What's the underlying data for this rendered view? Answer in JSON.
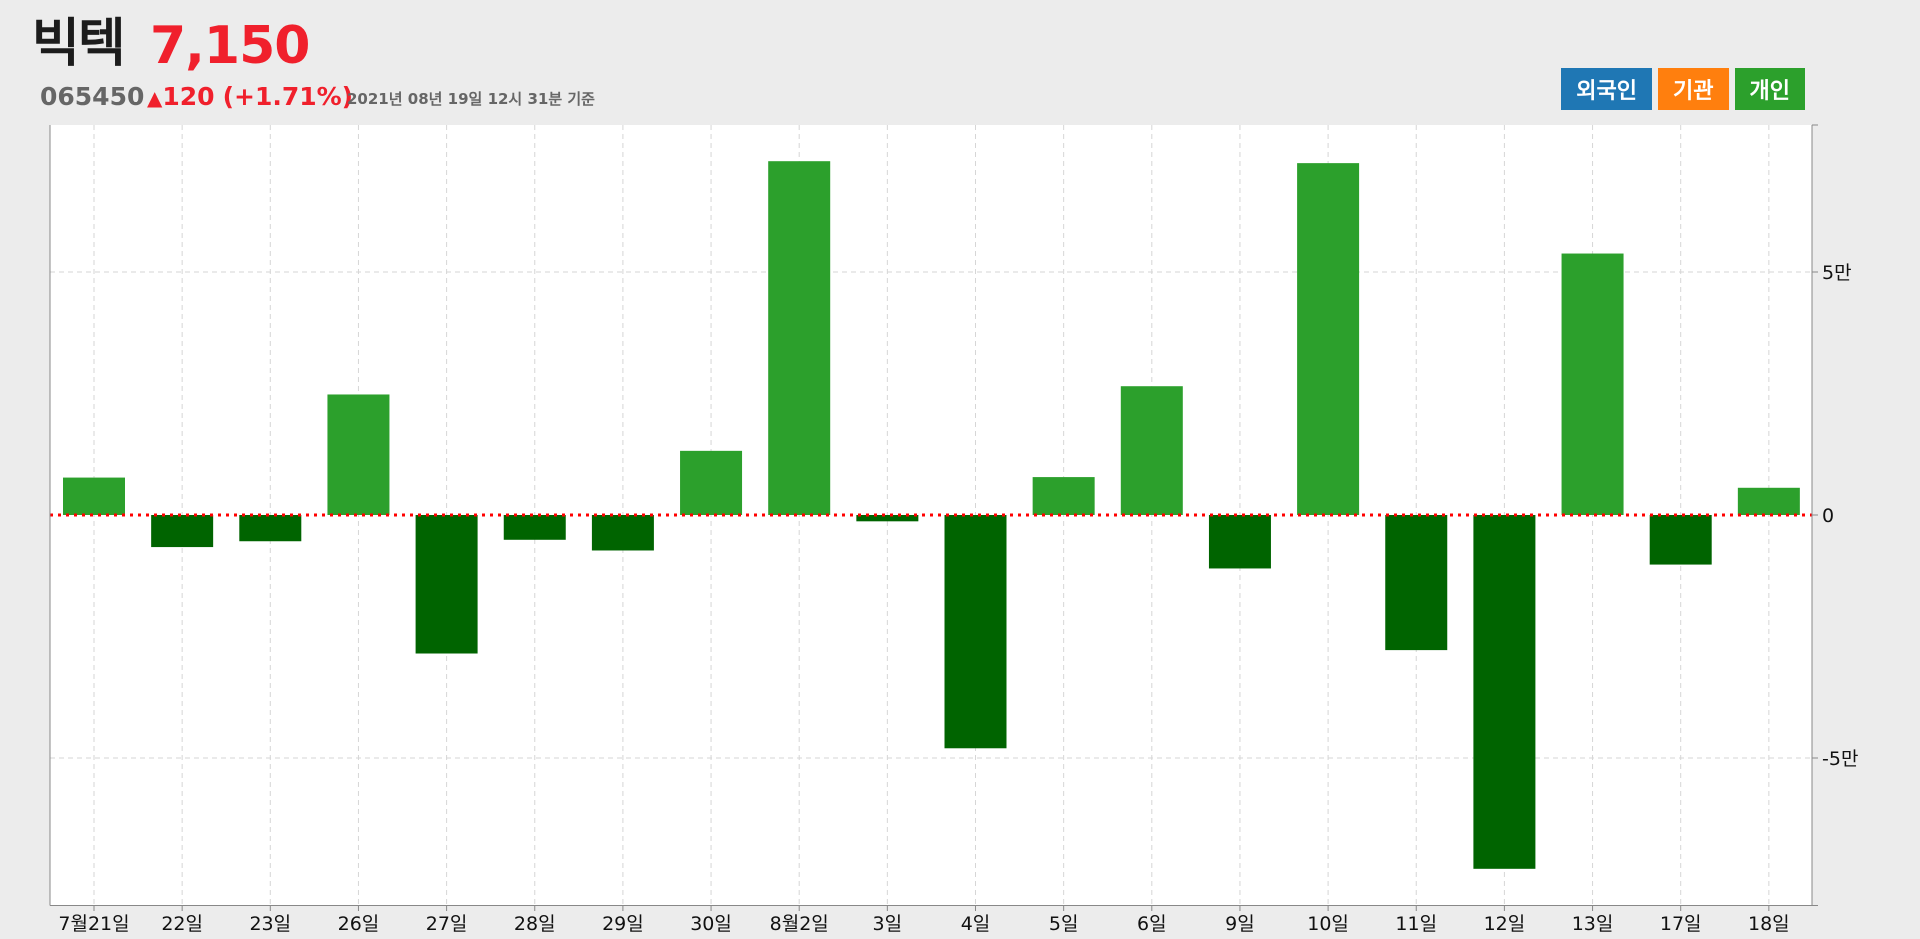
{
  "stock": {
    "name": "빅텍",
    "price": "7,150",
    "code": "065450",
    "change_arrow": "▲",
    "change_value": "120",
    "change_rate": "(+1.71%)",
    "timestamp": "2021년 08년 19일 12시 31분 기준"
  },
  "legend": {
    "items": [
      {
        "label": "외국인",
        "color": "#1f77b4"
      },
      {
        "label": "기관",
        "color": "#ff7f0e"
      },
      {
        "label": "개인",
        "color": "#2ca02c"
      }
    ]
  },
  "colors": {
    "positive": "#2ca02c",
    "negative": "#006400",
    "zero_line": "#ff0000",
    "price_up": "#f0202c"
  },
  "chart_data": {
    "type": "bar",
    "series_label": "개인",
    "categories": [
      "7월21일",
      "22일",
      "23일",
      "26일",
      "27일",
      "28일",
      "29일",
      "30일",
      "8월2일",
      "3일",
      "4일",
      "5일",
      "6일",
      "9일",
      "10일",
      "11일",
      "12일",
      "13일",
      "17일",
      "18일"
    ],
    "values": [
      7700,
      -6600,
      -5400,
      24800,
      -28500,
      -5100,
      -7300,
      13200,
      72800,
      -1300,
      -48000,
      7800,
      26500,
      -11000,
      72400,
      -27800,
      -72800,
      53800,
      -10200,
      5600
    ],
    "y_ticks": [
      50000,
      0,
      -50000
    ],
    "y_tick_labels": [
      "5만",
      "0",
      "-5만"
    ],
    "ylim": [
      -80000,
      80000
    ],
    "grid": true,
    "y_axis_position": "right"
  }
}
